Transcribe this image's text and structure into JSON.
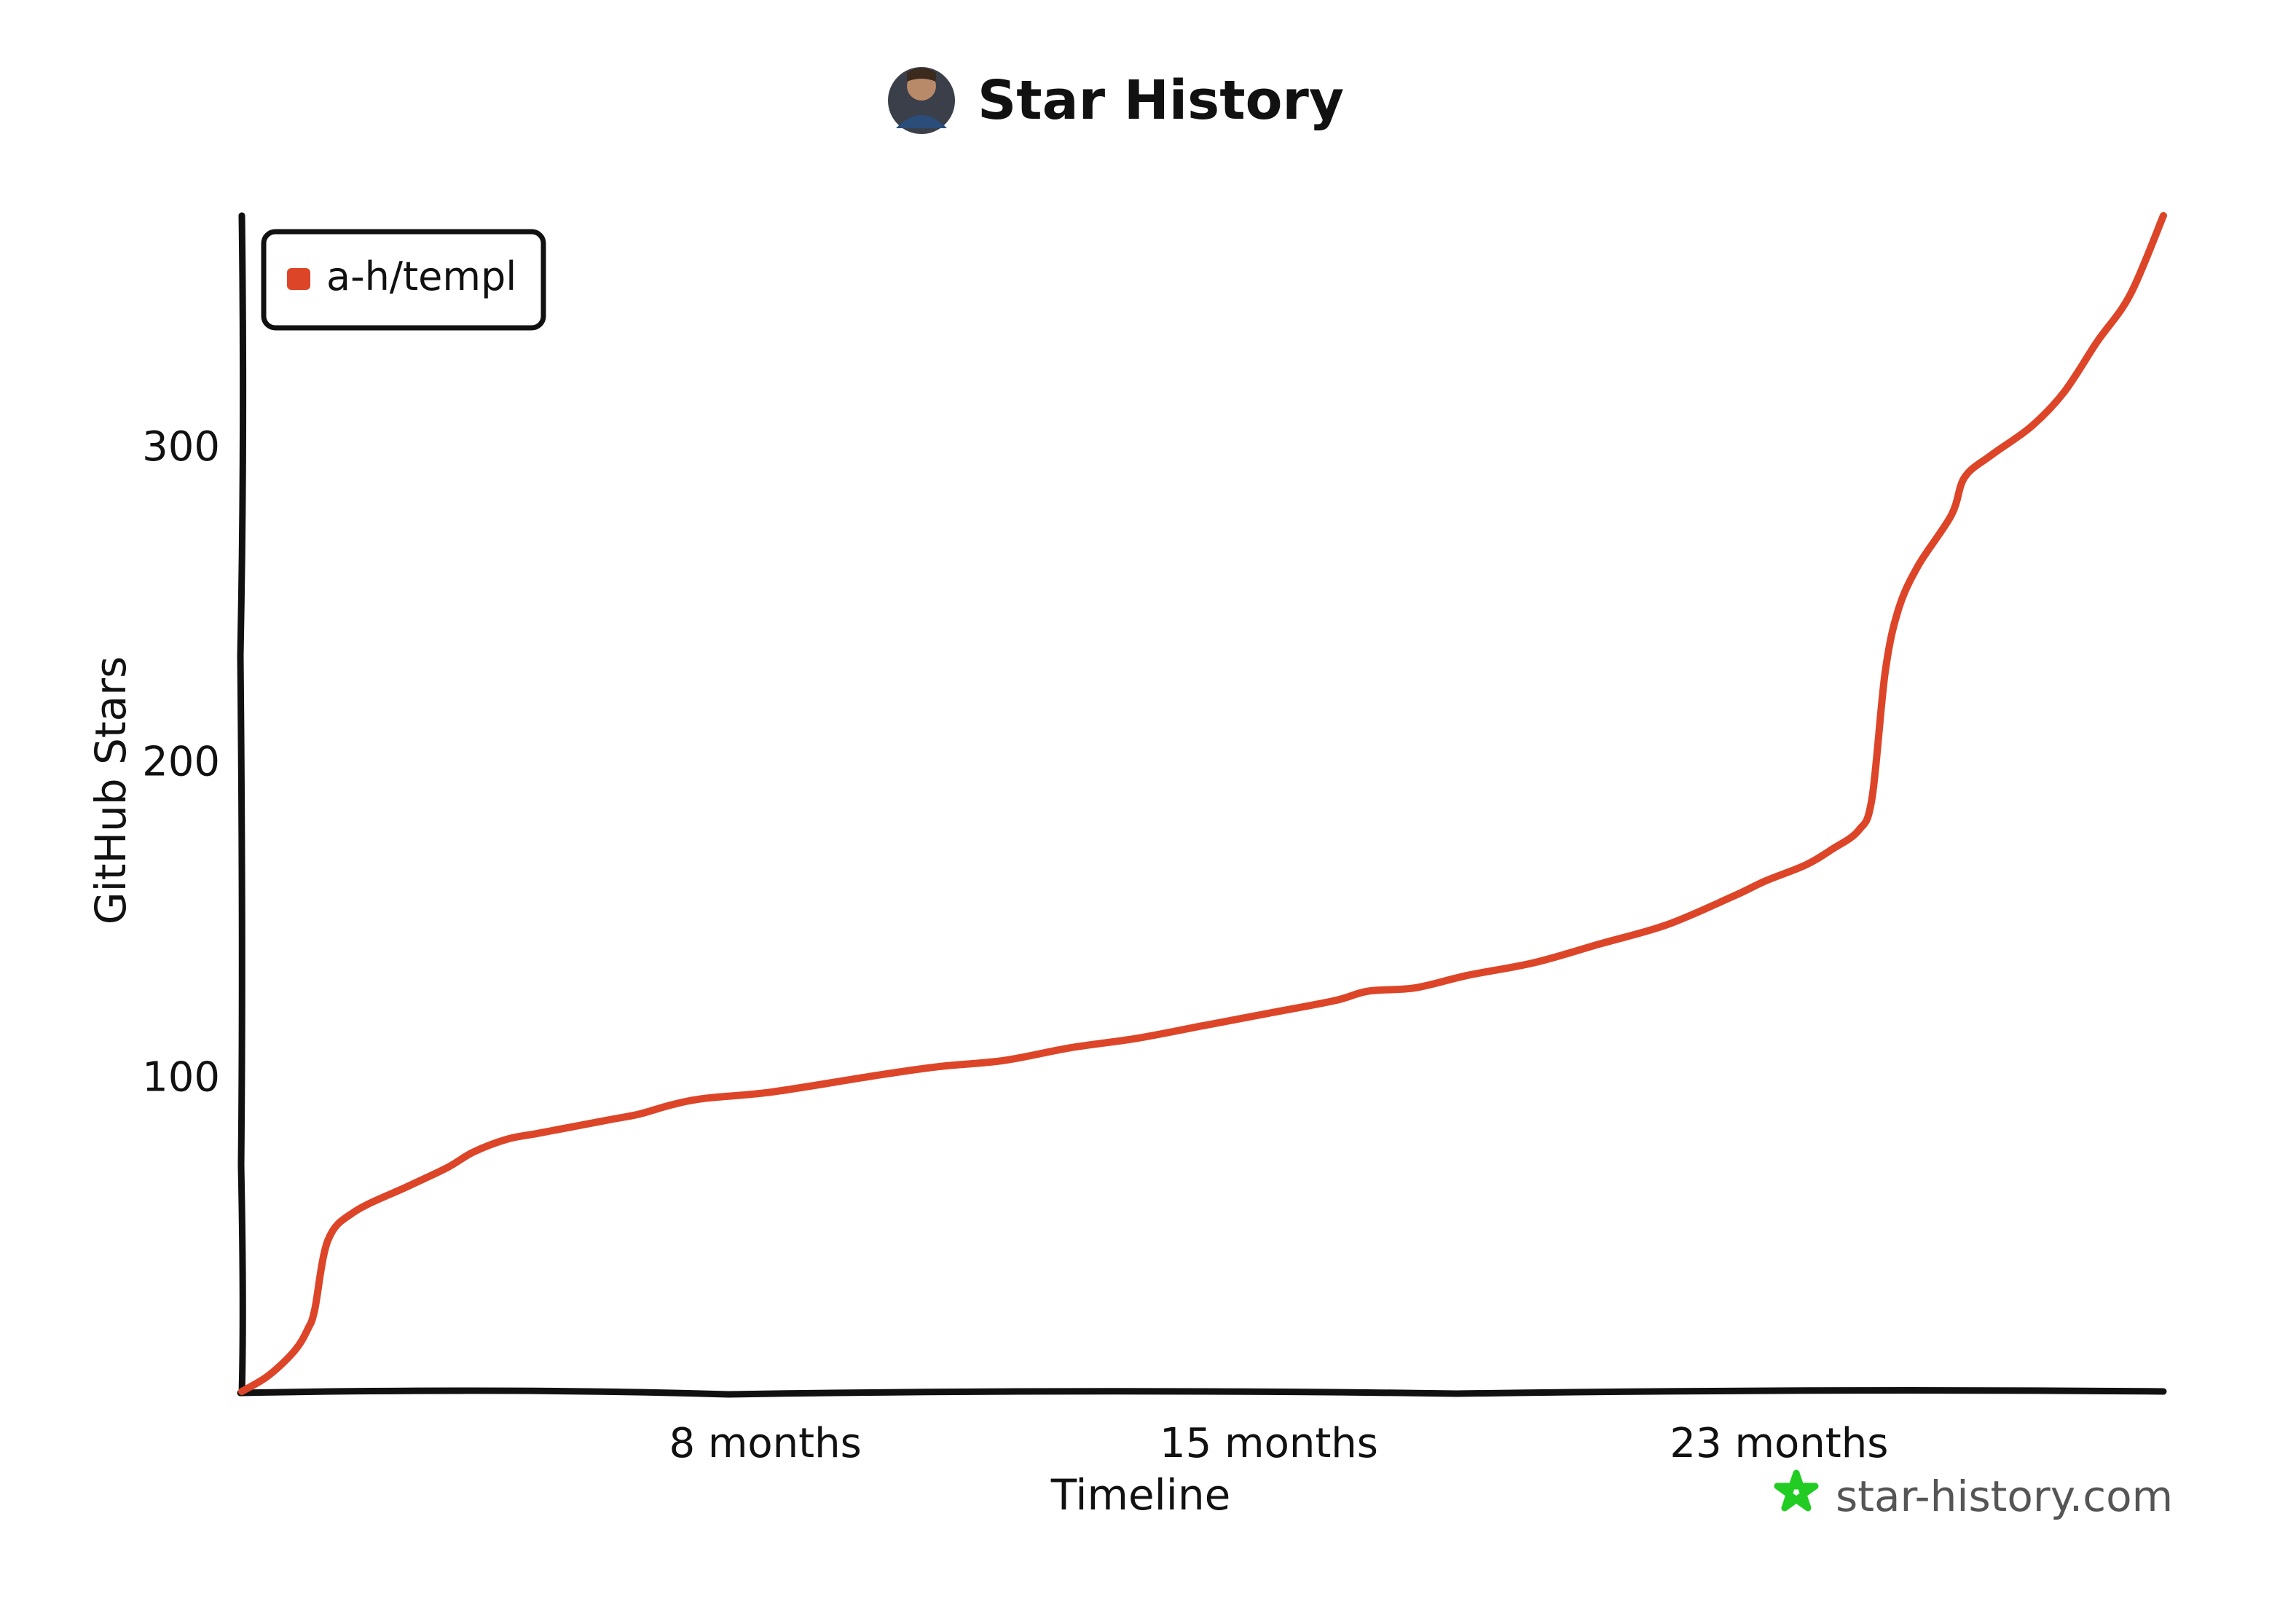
{
  "header": {
    "title": "Star History",
    "avatar_icon": "user-avatar-icon"
  },
  "chart_data": {
    "type": "line",
    "title": "Star History",
    "xlabel": "Timeline",
    "ylabel": "GitHub Stars",
    "xlim": [
      0,
      29
    ],
    "ylim": [
      0,
      373
    ],
    "x_ticks": [
      {
        "value": 7.9,
        "label": "8 months"
      },
      {
        "value": 15.5,
        "label": "15 months"
      },
      {
        "value": 23.2,
        "label": "23 months"
      }
    ],
    "y_ticks": [
      {
        "value": 100,
        "label": "100"
      },
      {
        "value": 200,
        "label": "200"
      },
      {
        "value": 300,
        "label": "300"
      }
    ],
    "grid": false,
    "legend_position": "top-left",
    "series": [
      {
        "name": "a-h/templ",
        "color": "#dd4528",
        "x": [
          0,
          0.4,
          0.8,
          1.0,
          1.1,
          1.3,
          1.7,
          2.5,
          3.1,
          3.5,
          4.0,
          4.5,
          5.5,
          6.0,
          6.5,
          7.0,
          8.0,
          9.5,
          10.5,
          11.5,
          12.5,
          13.5,
          14.5,
          15.5,
          16.5,
          17.0,
          17.7,
          18.5,
          19.5,
          20.5,
          21.5,
          22.5,
          23.0,
          23.6,
          24.0,
          24.4,
          24.6,
          24.8,
          25.0,
          25.3,
          25.8,
          26.0,
          26.4,
          27.0,
          27.5,
          28.0,
          28.5,
          29.0
        ],
        "y": [
          0,
          5,
          13,
          20,
          26,
          48,
          57,
          65,
          71,
          76,
          80,
          82,
          86,
          88,
          91,
          93,
          95,
          100,
          103,
          105,
          109,
          112,
          116,
          120,
          124,
          127,
          128,
          132,
          136,
          142,
          148,
          157,
          162,
          167,
          172,
          178,
          188,
          228,
          248,
          262,
          278,
          290,
          297,
          306,
          317,
          333,
          348,
          373
        ]
      }
    ]
  },
  "legend": {
    "entries": [
      {
        "label": "a-h/templ",
        "color": "#dd4528"
      }
    ]
  },
  "branding": {
    "text": "star-history.com",
    "icon": "star-history-logo-icon",
    "icon_color": "#22cc22"
  }
}
